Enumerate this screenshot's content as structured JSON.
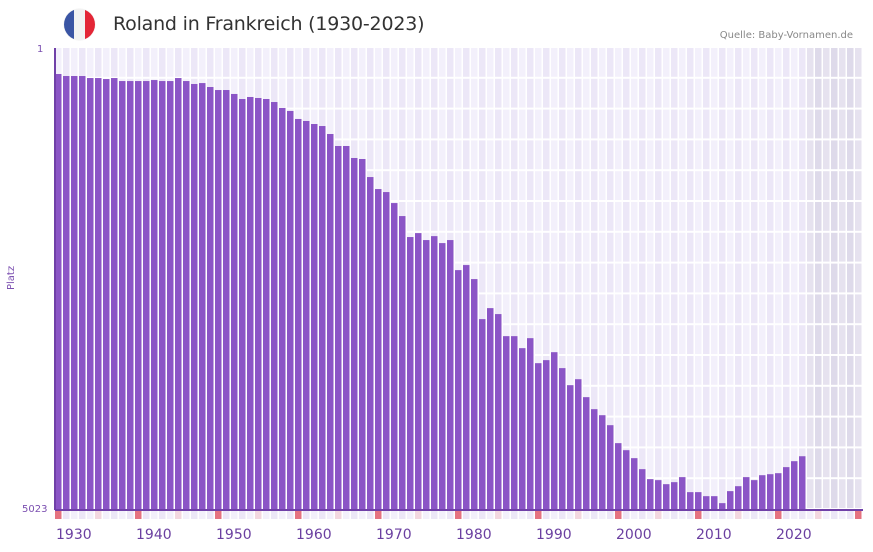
{
  "header": {
    "title": "Roland in Frankreich (1930-2023)",
    "source": "Quelle: Baby-Vornamen.de",
    "flag": {
      "name": "france-flag-icon",
      "colors": [
        "#3a55a4",
        "#f2f2f2",
        "#e32636"
      ]
    }
  },
  "colors": {
    "bar": "#8b55c6",
    "axis": "#7040a8",
    "grid_cell_a": "#f3f0fb",
    "grid_cell_b": "#ece7f7",
    "future_cell_a": "#e6e2ef",
    "future_cell_b": "#dedaea",
    "tick_major": "#e57380",
    "tick_minor": "#f3d7df",
    "label": "#6a3fa0"
  },
  "chart_data": {
    "type": "bar",
    "title": "Roland in Frankreich (1930-2023)",
    "xlabel": "",
    "ylabel": "Platz",
    "y_inverted": true,
    "ylim": [
      1,
      5023
    ],
    "y_tick_labels": [
      "1",
      "5023"
    ],
    "x_tick_labels": [
      "1930",
      "1940",
      "1950",
      "1960",
      "1970",
      "1980",
      "1990",
      "2000",
      "2010",
      "2020"
    ],
    "x_range": [
      1930,
      2030
    ],
    "grid": true,
    "legend": null,
    "categories": [
      1930,
      1931,
      1932,
      1933,
      1934,
      1935,
      1936,
      1937,
      1938,
      1939,
      1940,
      1941,
      1942,
      1943,
      1944,
      1945,
      1946,
      1947,
      1948,
      1949,
      1950,
      1951,
      1952,
      1953,
      1954,
      1955,
      1956,
      1957,
      1958,
      1959,
      1960,
      1961,
      1962,
      1963,
      1964,
      1965,
      1966,
      1967,
      1968,
      1969,
      1970,
      1971,
      1972,
      1973,
      1974,
      1975,
      1976,
      1977,
      1978,
      1979,
      1980,
      1981,
      1982,
      1983,
      1984,
      1985,
      1986,
      1987,
      1988,
      1989,
      1990,
      1991,
      1992,
      1993,
      1994,
      1995,
      1996,
      1997,
      1998,
      1999,
      2000,
      2001,
      2002,
      2003,
      2004,
      2005,
      2006,
      2007,
      2008,
      2009,
      2010,
      2011,
      2012,
      2013,
      2014,
      2015,
      2016,
      2017,
      2018,
      2019,
      2020,
      2021,
      2022,
      2023
    ],
    "values": [
      263,
      285,
      285,
      285,
      307,
      307,
      318,
      307,
      340,
      340,
      340,
      340,
      329,
      340,
      340,
      307,
      340,
      372,
      362,
      405,
      438,
      438,
      481,
      536,
      514,
      525,
      536,
      569,
      634,
      667,
      754,
      776,
      809,
      831,
      918,
      1049,
      1049,
      1180,
      1191,
      1388,
      1519,
      1552,
      1672,
      1814,
      2043,
      2000,
      2076,
      2033,
      2109,
      2076,
      2404,
      2349,
      2502,
      2939,
      2819,
      2884,
      3125,
      3125,
      3256,
      3147,
      3420,
      3387,
      3300,
      3474,
      3660,
      3595,
      3791,
      3922,
      3988,
      4097,
      4293,
      4370,
      4457,
      4577,
      4686,
      4697,
      4741,
      4719,
      4664,
      4828,
      4828,
      4872,
      4872,
      4948,
      4817,
      4763,
      4664,
      4697,
      4643,
      4632,
      4621,
      4555,
      4490,
      4436
    ]
  }
}
